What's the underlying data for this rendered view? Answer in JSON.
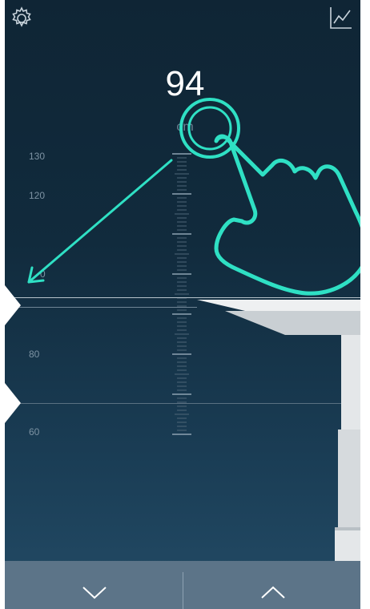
{
  "app": {
    "current_height": "94",
    "unit": "cm",
    "accent_color": "#2fe0c4",
    "background_color": "#112b3d"
  },
  "toolbar": {
    "settings_icon": "gear-icon",
    "chart_icon": "line-chart-icon"
  },
  "scale": {
    "labels": [
      "130",
      "120",
      "80",
      "60"
    ],
    "partially_hidden_label": "0"
  },
  "controls": {
    "down_icon": "chevron-down-icon",
    "up_icon": "chevron-up-icon"
  },
  "gesture": {
    "icon": "tap-hand-icon",
    "arrow_icon": "arrow-down-left-icon"
  }
}
